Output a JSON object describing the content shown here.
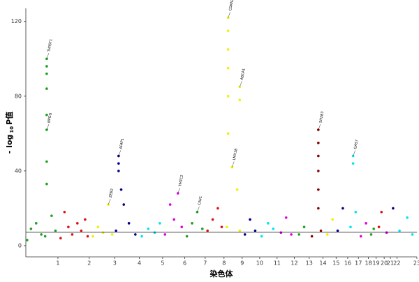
{
  "chart_data": {
    "type": "scatter",
    "ylabel": "- log",
    "ylabel_sub": "10",
    "ylabel_tail": "P值",
    "xlabel": "染色体",
    "xlim": [
      0,
      3035
    ],
    "ylim": [
      -6,
      127
    ],
    "yticks": [
      0,
      40,
      80,
      120
    ],
    "xticks": [
      {
        "value": 249,
        "label": "1"
      },
      {
        "value": 492,
        "label": "2"
      },
      {
        "value": 690,
        "label": "3"
      },
      {
        "value": 881,
        "label": "4"
      },
      {
        "value": 1062,
        "label": "5"
      },
      {
        "value": 1233,
        "label": "6"
      },
      {
        "value": 1392,
        "label": "7"
      },
      {
        "value": 1538,
        "label": "8"
      },
      {
        "value": 1679,
        "label": "9"
      },
      {
        "value": 1815,
        "label": "10"
      },
      {
        "value": 1950,
        "label": "11"
      },
      {
        "value": 2084,
        "label": "12"
      },
      {
        "value": 2199,
        "label": "13"
      },
      {
        "value": 2306,
        "label": "14"
      },
      {
        "value": 2408,
        "label": "15"
      },
      {
        "value": 2498,
        "label": "16"
      },
      {
        "value": 2581,
        "label": "17"
      },
      {
        "value": 2659,
        "label": "18"
      },
      {
        "value": 2718,
        "label": "19"
      },
      {
        "value": 2781,
        "label": "20"
      },
      {
        "value": 2829,
        "label": "21"
      },
      {
        "value": 2880,
        "label": "22"
      },
      {
        "value": 3035,
        "label": "23"
      }
    ],
    "grid": false,
    "threshold": 7.3,
    "series": [
      {
        "color": "#1fa01f",
        "x": [
          10,
          40,
          80,
          120,
          150,
          162,
          162,
          162,
          162,
          162,
          162,
          162,
          162,
          200,
          230
        ],
        "y": [
          3,
          9,
          12,
          6,
          5,
          100,
          96,
          92,
          84,
          70,
          62,
          45,
          33,
          16,
          8
        ]
      },
      {
        "color": "#e01010",
        "x": [
          270,
          300,
          330,
          360,
          400,
          430,
          460,
          480
        ],
        "y": [
          4,
          18,
          10,
          6,
          12,
          8,
          14,
          5
        ]
      },
      {
        "color": "#f0f000",
        "x": [
          520,
          560,
          600,
          640,
          670
        ],
        "y": [
          5,
          10,
          7,
          22,
          6
        ]
      },
      {
        "color": "#00008b",
        "x": [
          700,
          720,
          720,
          720,
          740,
          760,
          800,
          850
        ],
        "y": [
          8,
          48,
          44,
          40,
          30,
          22,
          12,
          6
        ]
      },
      {
        "color": "#00e5ee",
        "x": [
          900,
          950,
          1000,
          1040
        ],
        "y": [
          5,
          9,
          7,
          12
        ]
      },
      {
        "color": "#e000e0",
        "x": [
          1080,
          1120,
          1150,
          1180,
          1210
        ],
        "y": [
          6,
          22,
          14,
          28,
          10
        ]
      },
      {
        "color": "#1fa01f",
        "x": [
          1250,
          1290,
          1330,
          1370
        ],
        "y": [
          5,
          12,
          18,
          9
        ]
      },
      {
        "color": "#e01010",
        "x": [
          1410,
          1450,
          1490,
          1520
        ],
        "y": [
          8,
          14,
          20,
          10
        ]
      },
      {
        "color": "#f0f000",
        "x": [
          1560,
          1570,
          1570,
          1570,
          1570,
          1570,
          1570,
          1600,
          1640,
          1660,
          1660,
          1660
        ],
        "y": [
          10,
          122,
          115,
          105,
          95,
          80,
          60,
          42,
          30,
          85,
          78,
          8
        ]
      },
      {
        "color": "#00008b",
        "x": [
          1700,
          1740,
          1780
        ],
        "y": [
          6,
          14,
          8
        ]
      },
      {
        "color": "#00e5ee",
        "x": [
          1830,
          1880,
          1920
        ],
        "y": [
          5,
          12,
          9
        ]
      },
      {
        "color": "#e000e0",
        "x": [
          1980,
          2020,
          2060
        ],
        "y": [
          7,
          15,
          6
        ]
      },
      {
        "color": "#1fa01f",
        "x": [
          2120,
          2160
        ],
        "y": [
          6,
          10
        ]
      },
      {
        "color": "#8b0000",
        "x": [
          2220,
          2270,
          2270,
          2270,
          2270,
          2270,
          2270,
          2290
        ],
        "y": [
          5,
          62,
          55,
          48,
          40,
          30,
          20,
          8
        ]
      },
      {
        "color": "#f0f000",
        "x": [
          2340,
          2380
        ],
        "y": [
          6,
          14
        ]
      },
      {
        "color": "#00008b",
        "x": [
          2420,
          2460
        ],
        "y": [
          8,
          20
        ]
      },
      {
        "color": "#00e5ee",
        "x": [
          2520,
          2540,
          2540,
          2560
        ],
        "y": [
          10,
          48,
          44,
          18
        ]
      },
      {
        "color": "#e000e0",
        "x": [
          2600,
          2640
        ],
        "y": [
          5,
          12
        ]
      },
      {
        "color": "#1fa01f",
        "x": [
          2680,
          2700
        ],
        "y": [
          6,
          9
        ]
      },
      {
        "color": "#e01010",
        "x": [
          2740,
          2760
        ],
        "y": [
          10,
          18
        ]
      },
      {
        "color": "#e000e0",
        "x": [
          2800
        ],
        "y": [
          7
        ]
      },
      {
        "color": "#00008b",
        "x": [
          2850
        ],
        "y": [
          20
        ]
      },
      {
        "color": "#00e5ee",
        "x": [
          2900,
          2960,
          3000
        ],
        "y": [
          8,
          15,
          6
        ]
      }
    ],
    "annotations": [
      {
        "text": "TWIST1",
        "x": 162,
        "y": 100
      },
      {
        "text": "NPGG",
        "x": 162,
        "y": 62
      },
      {
        "text": "AFAP1",
        "x": 720,
        "y": 48
      },
      {
        "text": "CDKN2B-AS1",
        "x": 1570,
        "y": 122
      },
      {
        "text": "ABCA1",
        "x": 1660,
        "y": 85
      },
      {
        "text": "LMX1B",
        "x": 1600,
        "y": 42
      },
      {
        "text": "SH2B3",
        "x": 2270,
        "y": 62
      },
      {
        "text": "GAS7",
        "x": 2540,
        "y": 48
      },
      {
        "text": "ZEB2",
        "x": 640,
        "y": 22
      },
      {
        "text": "CAV1",
        "x": 1330,
        "y": 18
      },
      {
        "text": "TMTC2",
        "x": 1180,
        "y": 28
      }
    ]
  }
}
